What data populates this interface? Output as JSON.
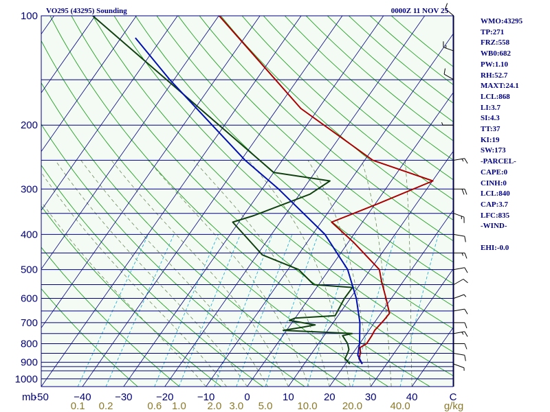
{
  "header": {
    "station_title": "VO295 (43295) Sounding",
    "valid_time": "0000Z 11 NOV 25"
  },
  "indices": [
    "WMO:43295",
    "TP:271",
    "FRZ:558",
    "WB0:682",
    "PW:1.10",
    "RH:52.7",
    "MAXT:24.1",
    "LCL:868",
    "LI:3.7",
    "SI:4.3",
    "TT:37",
    "KI:19",
    "SW:173",
    "-PARCEL-",
    "CAPE:0",
    "CINH:0",
    "LCL:840",
    "CAP:3.7",
    "LFC:835",
    "-WIND-",
    "EHI:-0.0"
  ],
  "colors": {
    "background": "#f4fbf4",
    "isobar": "#000080",
    "isotherm": "#000080",
    "dry_adiabat": "#22a022",
    "moist_adiabat": "#6e8a5a",
    "mixing_ratio": "#2ab0d0",
    "temperature": "#aa0000",
    "dewpoint": "#104010",
    "parcel": "#0010b0"
  },
  "chart_data": {
    "type": "line",
    "title": "VO295 (43295) Sounding",
    "subtitle": "0000Z 11 NOV 25",
    "xlabel": "",
    "ylabel": "mb",
    "xunit": "C",
    "xlim": [
      -50,
      50
    ],
    "ylim": [
      1000,
      100
    ],
    "yscale": "log",
    "pressure_ticks": [
      100,
      200,
      300,
      400,
      500,
      600,
      700,
      800,
      900,
      1000
    ],
    "isobars": [
      100,
      150,
      200,
      250,
      300,
      350,
      400,
      450,
      500,
      550,
      600,
      650,
      700,
      750,
      800,
      850,
      900,
      925,
      950,
      1000
    ],
    "temperature_ticks": [
      -50,
      -40,
      -30,
      -20,
      -10,
      0,
      10,
      20,
      30,
      40,
      50
    ],
    "temperature_tick_labels": [
      "-50",
      "−40",
      "−30",
      "−20",
      "−10",
      "0",
      "10",
      "20",
      "30",
      "40",
      "C"
    ],
    "mixing_ratio_labels": [
      "0.1",
      "0.2",
      "0.6",
      "1.0",
      "2.0",
      "3.0",
      "5.0",
      "10.0",
      "20.0",
      "40.0",
      "g/kg"
    ],
    "series": [
      {
        "key": "temperature",
        "points": [
          [
            910,
            24.1
          ],
          [
            880,
            22.4
          ],
          [
            850,
            21.8
          ],
          [
            820,
            20.8
          ],
          [
            800,
            21.7
          ],
          [
            760,
            21.6
          ],
          [
            735,
            21.4
          ],
          [
            690,
            21.9
          ],
          [
            660,
            22.1
          ],
          [
            600,
            18.7
          ],
          [
            540,
            14.8
          ],
          [
            500,
            12.2
          ],
          [
            420,
            1.2
          ],
          [
            370,
            -7.5
          ],
          [
            330,
            0.5
          ],
          [
            285,
            10.1
          ],
          [
            250,
            -8.0
          ],
          [
            180,
            -34.3
          ],
          [
            100,
            -69.9
          ]
        ]
      },
      {
        "key": "dewpoint",
        "points": [
          [
            910,
            21.1
          ],
          [
            880,
            19.0
          ],
          [
            850,
            18.7
          ],
          [
            830,
            18.4
          ],
          [
            800,
            17.1
          ],
          [
            760,
            14.5
          ],
          [
            750,
            16.5
          ],
          [
            735,
            -0.8
          ],
          [
            720,
            3.5
          ],
          [
            710,
            6.0
          ],
          [
            690,
            -1.0
          ],
          [
            680,
            0.0
          ],
          [
            670,
            9.3
          ],
          [
            600,
            8.6
          ],
          [
            560,
            8.7
          ],
          [
            550,
            -1.2
          ],
          [
            500,
            -7.4
          ],
          [
            455,
            -18.8
          ],
          [
            370,
            -31.5
          ],
          [
            355,
            -27.5
          ],
          [
            310,
            -17.5
          ],
          [
            285,
            -14.9
          ],
          [
            270,
            -30.0
          ],
          [
            100,
            -100.6
          ]
        ]
      },
      {
        "key": "parcel",
        "points": [
          [
            910,
            24.1
          ],
          [
            860,
            21.5
          ],
          [
            800,
            20.0
          ],
          [
            700,
            16.5
          ],
          [
            600,
            11.5
          ],
          [
            500,
            4.5
          ],
          [
            400,
            -7.0
          ],
          [
            300,
            -26.0
          ],
          [
            250,
            -39.0
          ],
          [
            200,
            -53.0
          ],
          [
            150,
            -71.0
          ],
          [
            115,
            -86.5
          ]
        ]
      }
    ],
    "wind_barbs": [
      {
        "p": 910,
        "dir": 110,
        "spd": 5
      },
      {
        "p": 850,
        "dir": 100,
        "spd": 10
      },
      {
        "p": 800,
        "dir": 90,
        "spd": 10
      },
      {
        "p": 750,
        "dir": 80,
        "spd": 15
      },
      {
        "p": 700,
        "dir": 90,
        "spd": 10
      },
      {
        "p": 650,
        "dir": 80,
        "spd": 10
      },
      {
        "p": 600,
        "dir": 70,
        "spd": 5
      },
      {
        "p": 550,
        "dir": 60,
        "spd": 10
      },
      {
        "p": 500,
        "dir": 80,
        "spd": 10
      },
      {
        "p": 450,
        "dir": 90,
        "spd": 15
      },
      {
        "p": 400,
        "dir": 100,
        "spd": 10
      },
      {
        "p": 350,
        "dir": 110,
        "spd": 15
      },
      {
        "p": 300,
        "dir": 90,
        "spd": 20
      },
      {
        "p": 250,
        "dir": 80,
        "spd": 15
      },
      {
        "p": 200,
        "dir": 270,
        "spd": 5
      },
      {
        "p": 150,
        "dir": 300,
        "spd": 10
      },
      {
        "p": 125,
        "dir": 290,
        "spd": 15
      },
      {
        "p": 100,
        "dir": 310,
        "spd": 10
      }
    ],
    "legend": "none",
    "grid": true
  }
}
